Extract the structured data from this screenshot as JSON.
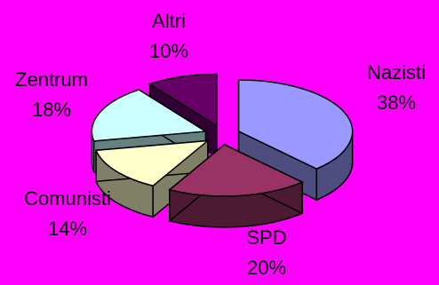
{
  "chart_data": {
    "type": "pie",
    "variant": "3d-exploded",
    "title": "",
    "slices": [
      {
        "label": "Nazisti",
        "value": 38,
        "value_label": "38%",
        "top_color": "#9999FF",
        "side_color": "#4D4D80"
      },
      {
        "label": "SPD",
        "value": 20,
        "value_label": "20%",
        "top_color": "#993366",
        "side_color": "#4D1A33"
      },
      {
        "label": "Comunisti",
        "value": 14,
        "value_label": "14%",
        "top_color": "#FFFFCC",
        "side_color": "#808066"
      },
      {
        "label": "Zentrum",
        "value": 18,
        "value_label": "18%",
        "top_color": "#CCFFFF",
        "side_color": "#668080"
      },
      {
        "label": "Altri",
        "value": 10,
        "value_label": "10%",
        "top_color": "#660066",
        "side_color": "#330033"
      }
    ],
    "background_color": "#FF00FF",
    "outline_color": "#000000"
  }
}
